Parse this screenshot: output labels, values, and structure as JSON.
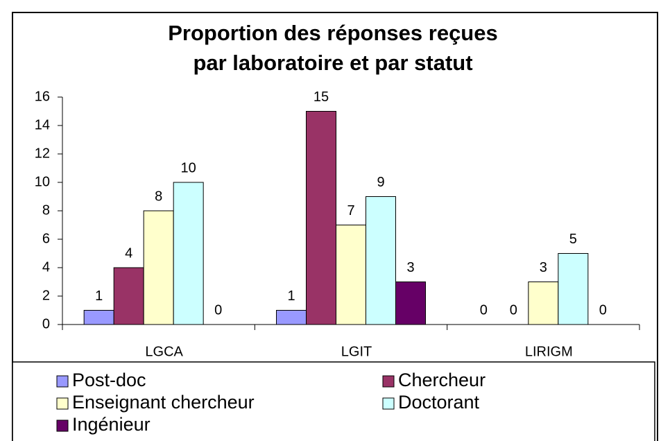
{
  "chart_data": {
    "type": "bar",
    "title": [
      "Proportion des réponses reçues",
      "par laboratoire et par statut"
    ],
    "categories": [
      "LGCA",
      "LGIT",
      "LIRIGM"
    ],
    "series": [
      {
        "name": "Post-doc",
        "color": "#9999ff",
        "values": [
          1,
          1,
          0
        ]
      },
      {
        "name": "Chercheur",
        "color": "#993366",
        "values": [
          4,
          15,
          0
        ]
      },
      {
        "name": "Enseignant chercheur",
        "color": "#ffffcc",
        "values": [
          8,
          7,
          3
        ]
      },
      {
        "name": "Doctorant",
        "color": "#ccffff",
        "values": [
          10,
          9,
          5
        ]
      },
      {
        "name": "Ingénieur",
        "color": "#660066",
        "values": [
          0,
          3,
          0
        ]
      }
    ],
    "ylim": [
      0,
      16
    ],
    "yticks": [
      0,
      2,
      4,
      6,
      8,
      10,
      12,
      14,
      16
    ],
    "grid": false,
    "legend": "bottom"
  }
}
